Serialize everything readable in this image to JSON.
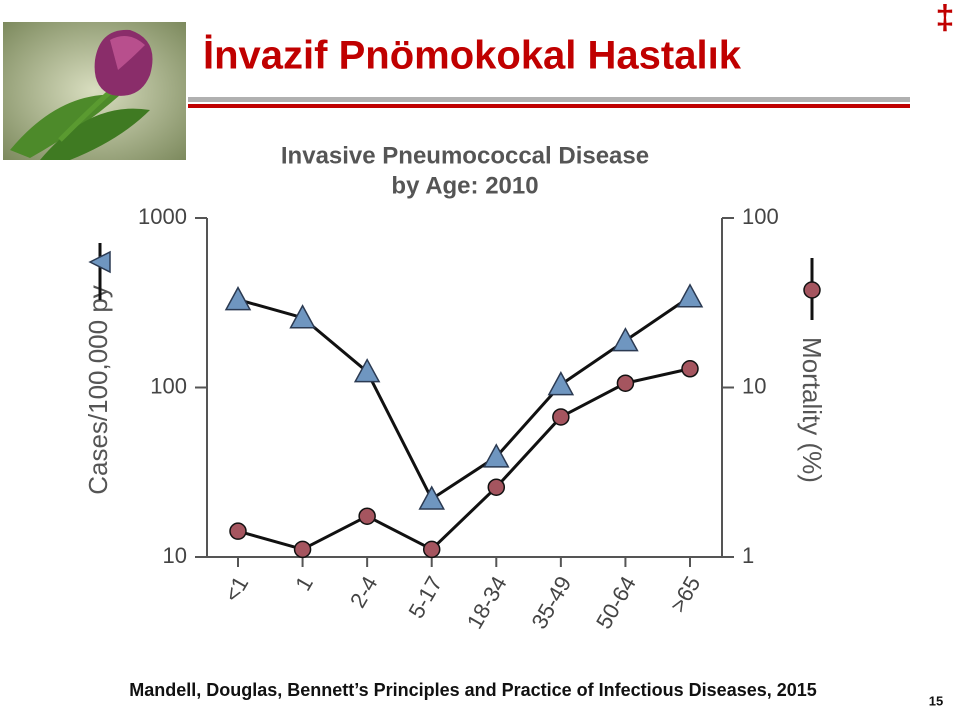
{
  "slide_title": "İnvazif Pnömokokal Hastalık",
  "corner_mark": "‡",
  "chart_data": {
    "type": "line",
    "title": "Invasive Pneumococcal Disease",
    "subtitle": "by Age: 2010",
    "categories": [
      "<1",
      "1",
      "2-4",
      "5-17",
      "18-34",
      "35-49",
      "50-64",
      ">65"
    ],
    "y_label": "Cases/100,000 py",
    "y2_label": "Mortality (%)",
    "log_scale": true,
    "ylim": [
      10,
      1000
    ],
    "yticks": [
      10,
      100,
      1000
    ],
    "y2lim": [
      1,
      100
    ],
    "y2ticks": [
      1,
      10,
      100
    ],
    "series": [
      {
        "color": "#6f96c0",
        "marker": "triangle",
        "values": [
          330,
          258,
          124,
          22,
          39,
          104,
          189,
          343
        ]
      },
      {
        "color": "#a5555f",
        "marker": "circle",
        "axis": "y2",
        "values": [
          1.42,
          1.11,
          1.74,
          1.11,
          2.58,
          6.7,
          10.6,
          12.9
        ]
      }
    ]
  },
  "citation": "Mandell, Douglas, Bennett’s Principles and Practice of Infectious Diseases, 2015",
  "page_number": "15"
}
